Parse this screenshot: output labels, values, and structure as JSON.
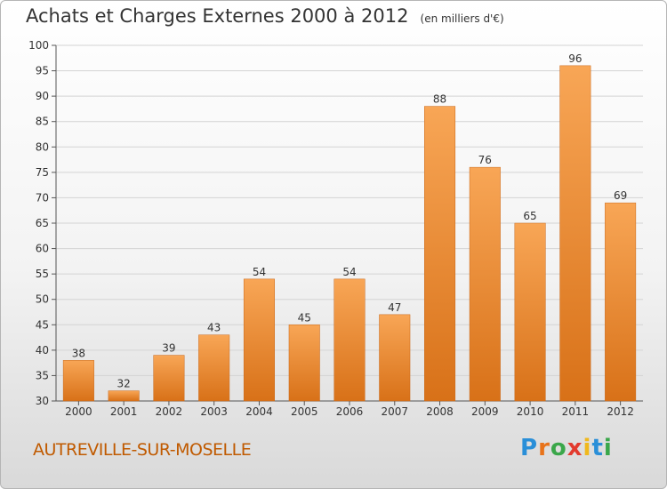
{
  "header": {
    "title": "Achats et Charges Externes 2000 à 2012",
    "unit": "(en milliers d'€)"
  },
  "footer": {
    "location": "AUTREVILLE-SUR-MOSELLE",
    "brand": [
      "P",
      "r",
      "o",
      "x",
      "i",
      "t",
      "i"
    ]
  },
  "colors": {
    "bar_top": "#f8a656",
    "bar_bottom": "#d87118",
    "location_text": "#c05a00",
    "brand": [
      "#2a8fd8",
      "#e8731a",
      "#3aa74a",
      "#e23a2e",
      "#f0b81c",
      "#2a8fd8",
      "#3aa74a"
    ]
  },
  "chart_data": {
    "type": "bar",
    "title": "Achats et Charges Externes 2000 à 2012",
    "subtitle": "(en milliers d'€)",
    "categories": [
      "2000",
      "2001",
      "2002",
      "2003",
      "2004",
      "2005",
      "2006",
      "2007",
      "2008",
      "2009",
      "2010",
      "2011",
      "2012"
    ],
    "values": [
      38,
      32,
      39,
      43,
      54,
      45,
      54,
      47,
      88,
      76,
      65,
      96,
      69
    ],
    "ylim": [
      30,
      100
    ],
    "yticks": [
      30,
      35,
      40,
      45,
      50,
      55,
      60,
      65,
      70,
      75,
      80,
      85,
      90,
      95,
      100
    ],
    "grid": true,
    "data_labels": true
  }
}
